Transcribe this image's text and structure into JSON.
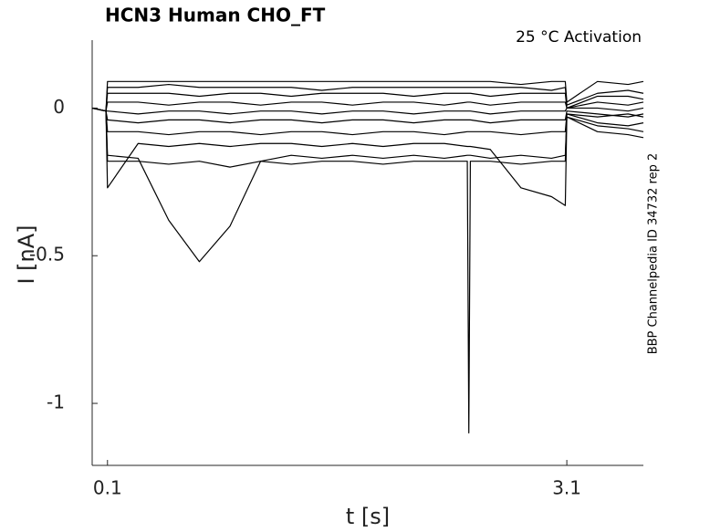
{
  "chart_data": {
    "type": "line",
    "title": "HCN3  Human  CHO_FT",
    "annotation": "25 °C  Activation",
    "side_note": "BBP Channelpedia ID 34732 rep 2",
    "xlabel": "t [s]",
    "ylabel": "I [nA]",
    "xlim": [
      0,
      3.6
    ],
    "ylim": [
      -1.21,
      0.23
    ],
    "xticks": [
      0.1,
      3.1
    ],
    "yticks": [
      -1,
      -0.5,
      0
    ],
    "x": [
      0,
      0.09,
      0.1,
      0.3,
      0.5,
      0.7,
      0.9,
      1.1,
      1.3,
      1.5,
      1.7,
      1.9,
      2.1,
      2.3,
      2.45,
      2.46,
      2.47,
      2.6,
      2.8,
      3.0,
      3.09,
      3.1,
      3.3,
      3.5,
      3.6
    ],
    "series": [
      {
        "color": "#000000",
        "values": [
          0,
          -0.01,
          0.09,
          0.09,
          0.09,
          0.09,
          0.09,
          0.09,
          0.09,
          0.09,
          0.09,
          0.09,
          0.09,
          0.09,
          0.09,
          0.09,
          0.09,
          0.09,
          0.08,
          0.09,
          0.09,
          0.02,
          0.09,
          0.08,
          0.09
        ]
      },
      {
        "color": "#000000",
        "values": [
          0,
          -0.01,
          0.07,
          0.07,
          0.08,
          0.07,
          0.07,
          0.07,
          0.07,
          0.06,
          0.07,
          0.07,
          0.07,
          0.07,
          0.07,
          0.07,
          0.07,
          0.07,
          0.07,
          0.06,
          0.07,
          0.01,
          0.05,
          0.06,
          0.05
        ]
      },
      {
        "color": "#000000",
        "values": [
          0,
          -0.01,
          0.05,
          0.05,
          0.05,
          0.04,
          0.05,
          0.05,
          0.04,
          0.05,
          0.05,
          0.05,
          0.04,
          0.05,
          0.05,
          0.05,
          0.05,
          0.04,
          0.05,
          0.05,
          0.05,
          0.0,
          0.04,
          0.04,
          0.03
        ]
      },
      {
        "color": "#000000",
        "values": [
          0,
          -0.01,
          0.02,
          0.02,
          0.01,
          0.02,
          0.02,
          0.01,
          0.02,
          0.02,
          0.01,
          0.02,
          0.02,
          0.01,
          0.02,
          0.02,
          0.02,
          0.01,
          0.02,
          0.02,
          0.02,
          0.0,
          0.02,
          0.01,
          0.02
        ]
      },
      {
        "color": "#000000",
        "values": [
          0,
          -0.01,
          -0.01,
          -0.02,
          -0.01,
          -0.01,
          -0.02,
          -0.01,
          -0.01,
          -0.02,
          -0.01,
          -0.01,
          -0.02,
          -0.01,
          -0.01,
          -0.01,
          -0.01,
          -0.02,
          -0.01,
          -0.01,
          -0.01,
          0.0,
          0.0,
          -0.01,
          0.0
        ]
      },
      {
        "color": "#000000",
        "values": [
          0,
          -0.01,
          -0.04,
          -0.05,
          -0.04,
          -0.04,
          -0.05,
          -0.04,
          -0.04,
          -0.05,
          -0.04,
          -0.04,
          -0.05,
          -0.04,
          -0.04,
          -0.04,
          -0.04,
          -0.05,
          -0.04,
          -0.04,
          -0.04,
          -0.01,
          -0.02,
          -0.03,
          -0.02
        ]
      },
      {
        "color": "#000000",
        "values": [
          0,
          -0.01,
          -0.08,
          -0.08,
          -0.09,
          -0.08,
          -0.08,
          -0.09,
          -0.08,
          -0.08,
          -0.09,
          -0.08,
          -0.08,
          -0.09,
          -0.08,
          -0.08,
          -0.08,
          -0.08,
          -0.09,
          -0.08,
          -0.08,
          -0.02,
          -0.05,
          -0.06,
          -0.05
        ]
      },
      {
        "color": "#000000",
        "values": [
          0,
          -0.01,
          -0.27,
          -0.12,
          -0.13,
          -0.12,
          -0.13,
          -0.12,
          -0.12,
          -0.13,
          -0.12,
          -0.13,
          -0.12,
          -0.12,
          -0.13,
          -0.13,
          -0.13,
          -0.14,
          -0.27,
          -0.3,
          -0.33,
          -0.03,
          -0.06,
          -0.07,
          -0.08
        ]
      },
      {
        "color": "#000000",
        "values": [
          0,
          -0.01,
          -0.16,
          -0.17,
          -0.38,
          -0.52,
          -0.4,
          -0.18,
          -0.16,
          -0.17,
          -0.16,
          -0.17,
          -0.16,
          -0.17,
          -0.16,
          -0.16,
          -0.16,
          -0.17,
          -0.16,
          -0.17,
          -0.16,
          -0.03,
          -0.08,
          -0.09,
          -0.1
        ]
      },
      {
        "color": "#000000",
        "values": [
          0,
          -0.01,
          -0.18,
          -0.18,
          -0.19,
          -0.18,
          -0.2,
          -0.18,
          -0.19,
          -0.18,
          -0.18,
          -0.19,
          -0.18,
          -0.18,
          -0.18,
          -1.1,
          -0.18,
          -0.18,
          -0.19,
          -0.18,
          -0.18,
          -0.02,
          -0.03,
          -0.02,
          -0.03
        ]
      }
    ]
  }
}
